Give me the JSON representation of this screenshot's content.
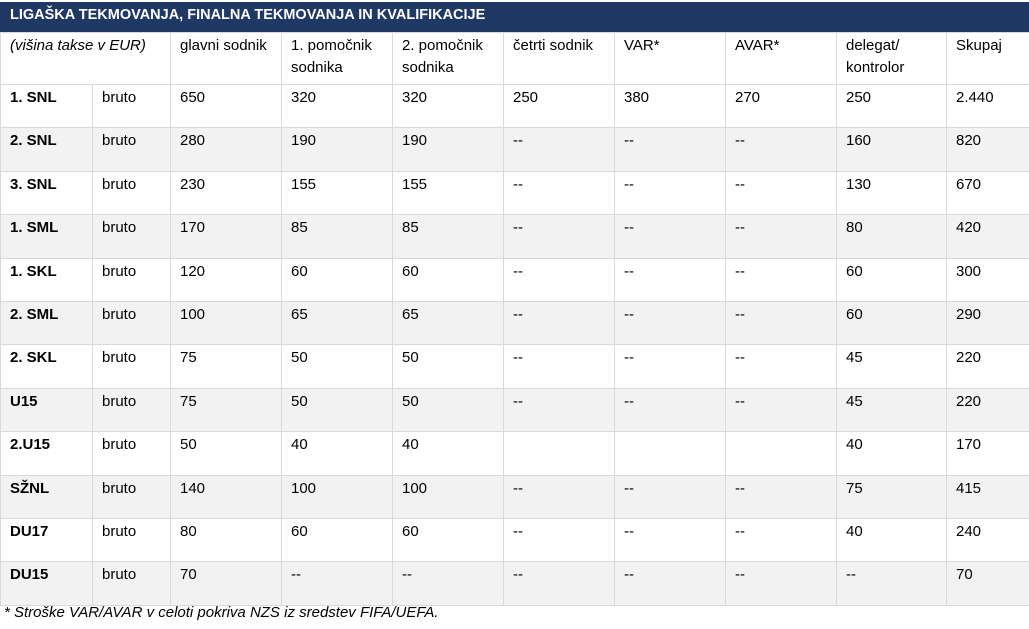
{
  "header": {
    "title": "LIGAŠKA TEKMOVANJA, FINALNA TEKMOVANJA IN KVALIFIKACIJE"
  },
  "table": {
    "header": [
      "(višina takse v EUR)",
      "glavni sodnik",
      "1. pomočnik sodnika",
      "2. pomočnik sodnika",
      "četrti sodnik",
      "VAR*",
      "AVAR*",
      "delegat/ kontrolor",
      "Skupaj"
    ],
    "rows": [
      [
        "1. SNL",
        "bruto",
        650,
        320,
        320,
        250,
        380,
        270,
        250,
        "2.440"
      ],
      [
        "2. SNL",
        "bruto",
        280,
        190,
        190,
        "--",
        "--",
        "--",
        160,
        820
      ],
      [
        "3. SNL",
        "bruto",
        230,
        155,
        155,
        "--",
        "--",
        "--",
        130,
        670
      ],
      [
        "1. SML",
        "bruto",
        170,
        85,
        85,
        "--",
        "--",
        "--",
        80,
        420
      ],
      [
        "1. SKL",
        "bruto",
        120,
        60,
        60,
        "--",
        "--",
        "--",
        60,
        300
      ],
      [
        "2. SML",
        "bruto",
        100,
        65,
        65,
        "--",
        "--",
        "--",
        60,
        290
      ],
      [
        "2. SKL",
        "bruto",
        75,
        50,
        50,
        "--",
        "--",
        "--",
        45,
        220
      ],
      [
        "U15",
        "bruto",
        75,
        50,
        50,
        "--",
        "--",
        "--",
        45,
        220
      ],
      [
        "2.U15",
        "bruto",
        50,
        40,
        40,
        null,
        null,
        null,
        40,
        170
      ],
      [
        "SŽNL",
        "bruto",
        140,
        100,
        100,
        "--",
        "--",
        "--",
        75,
        415
      ],
      [
        "DU17",
        "bruto",
        80,
        60,
        60,
        "--",
        "--",
        "--",
        40,
        240
      ],
      [
        "DU15",
        "bruto",
        70,
        "--",
        "--",
        "--",
        "--",
        "--",
        "--",
        70
      ]
    ]
  },
  "footnote": "* Stroške VAR/AVAR v celoti pokriva NZS iz sredstev FIFA/UEFA."
}
